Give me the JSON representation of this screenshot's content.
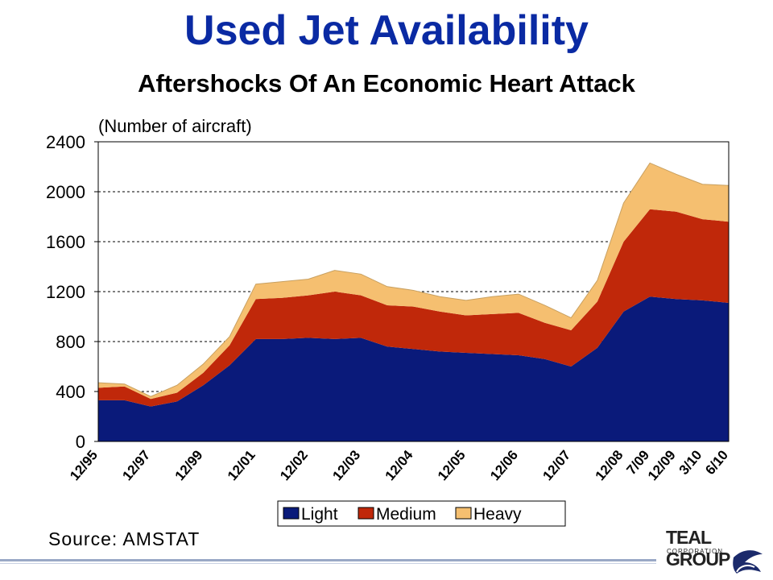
{
  "page": {
    "title": "Used Jet Availability",
    "subtitle": "Aftershocks Of An Economic Heart Attack",
    "source": "Source: AMSTAT",
    "logo_text": "TEAL GROUP",
    "logo_sub": "CORPORATION"
  },
  "chart_data": {
    "type": "area",
    "stacked": true,
    "ylabel": "(Number of aircraft)",
    "ylim": [
      0,
      2400
    ],
    "yticks": [
      0,
      400,
      800,
      1200,
      1600,
      2000,
      2400
    ],
    "grid": true,
    "legend_position": "bottom",
    "x_tick_labels": [
      "12/95",
      "12/97",
      "12/99",
      "12/01",
      "12/02",
      "12/03",
      "12/04",
      "12/05",
      "12/06",
      "12/07",
      "12/08",
      "7/09",
      "12/09",
      "3/10",
      "6/10"
    ],
    "x_tick_index": [
      0,
      2,
      4,
      6,
      8,
      10,
      12,
      14,
      16,
      18,
      20,
      21,
      22,
      23,
      24
    ],
    "x_points": [
      "12/95",
      "12/96",
      "12/97",
      "12/98",
      "12/99",
      "12/00",
      "12/01",
      "6/02",
      "12/02",
      "6/03",
      "12/03",
      "6/04",
      "12/04",
      "6/05",
      "12/05",
      "6/06",
      "12/06",
      "6/07",
      "12/07",
      "6/08",
      "12/08",
      "7/09",
      "12/09",
      "3/10",
      "6/10"
    ],
    "series": [
      {
        "name": "Light",
        "color": "#0a1a7a",
        "values": [
          330,
          330,
          280,
          320,
          450,
          610,
          820,
          820,
          830,
          820,
          830,
          760,
          740,
          720,
          710,
          700,
          690,
          660,
          600,
          750,
          1040,
          1160,
          1140,
          1130,
          1110
        ]
      },
      {
        "name": "Medium",
        "color": "#c0280a",
        "values": [
          100,
          110,
          60,
          70,
          100,
          160,
          320,
          330,
          340,
          380,
          340,
          330,
          340,
          320,
          300,
          320,
          340,
          290,
          290,
          370,
          560,
          700,
          700,
          650,
          650
        ]
      },
      {
        "name": "Heavy",
        "color": "#f5bf70",
        "values": [
          40,
          20,
          20,
          60,
          70,
          70,
          120,
          130,
          130,
          170,
          170,
          150,
          130,
          120,
          120,
          140,
          150,
          140,
          100,
          170,
          310,
          370,
          300,
          280,
          290
        ]
      }
    ]
  }
}
